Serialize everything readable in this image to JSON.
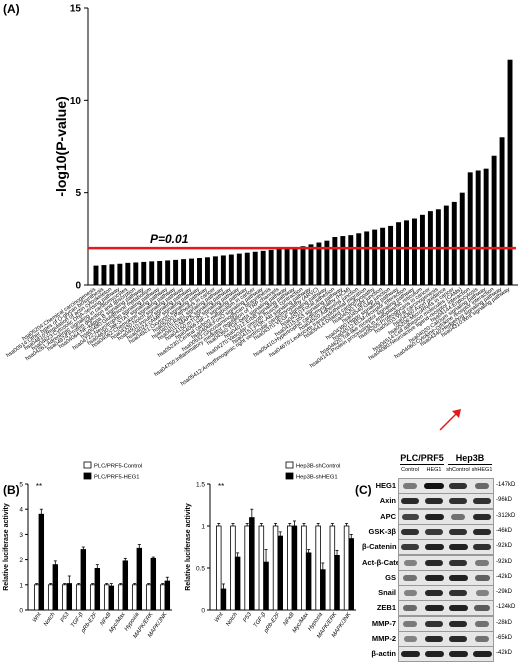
{
  "panels": {
    "a": "(A)",
    "b": "(B)",
    "c": "(C)"
  },
  "chart_data": [
    {
      "panel": "(A)",
      "type": "bar",
      "ylabel": "-log10(P-value)",
      "ylim": [
        0,
        15
      ],
      "yticks": [
        0,
        5,
        10,
        15
      ],
      "threshold": {
        "value": 2.0,
        "label": "P=0.01",
        "color": "#e31a1c"
      },
      "arrow_color": "#e31a1c",
      "arrow_target": "hsa04310:Wnt signaling pathway",
      "categories": [
        "hsa05204:Chemical carcinogenesis",
        "hsa00514:Other types of O-glycan biosynthesis",
        "hsa04810:Regulation of actin cytoskeleton",
        "hsa04623:Cytosolic DNA-sensing pathway",
        "hsa04261:Adrenergic signaling in cardiomyocytes",
        "hsa04974:Protein digestion and absorption",
        "hsa04064:NF-kappa B signaling pathway",
        "hsa00480:Glutathione metabolism",
        "hsa04722:Neurotrophin signaling pathway",
        "hsa04630:Jak-STAT signaling pathway",
        "hsa04062:Chemokine signaling pathway",
        "hsa04330:Notch signaling pathway",
        "hsa04910:Insulin signaling pathway",
        "hsa04024:cAMP signaling pathway",
        "hsa04921:Oxytocin signaling pathway",
        "hsa05200:Pathways in cancer",
        "hsa04015:Rap1 signaling pathway",
        "hsa04010:MAPK signaling pathway",
        "hsa04150:mTOR signaling pathway",
        "hsa04066:HIF-1 signaling pathway",
        "hsa05230:Central carbon metabolism in cancer",
        "hsa04068:FoxO signaling pathway",
        "hsa00532:Glycosaminoglycan biosynthesis",
        "hsa04750:Inflammatory mediator regulation of TRP channels",
        "hsa04350:TGF-beta signaling pathway",
        "hsa04012:ErbB signaling pathway",
        "hsa04270:Vascular smooth muscle contraction",
        "hsa04151:PI3K-Akt signaling pathway",
        "hsa05412:Arrhythmogenic right ventricular cardiomyopathy (ARVC)",
        "hsa04370:VEGF signaling pathway",
        "hsa04510:Focal adhesion",
        "hsa04115:p53 signaling pathway",
        "hsa05410:Hypertrophic cardiomyopathy (HCM)",
        "hsa04520:Adherens junction",
        "hsa04670:Leukocyte transendothelial migration",
        "hsa05414:Dilated cardiomyopathy",
        "hsa04530:Tight junction",
        "hsa04540:Gap junction",
        "hsa04390:Hippo signaling pathway",
        "hsa04512:ECM-receptor interaction",
        "hsa04620:Toll-like receptor signaling pathway",
        "hsa04141:Protein processing in endoplasmic reticulum",
        "hsa05205:Proteoglycans in cancer",
        "hsa05203:Viral carcinogenesis",
        "hsa04360:Axon guidance",
        "hsa05206:MicroRNAs in cancer",
        "hsa04514:Cell adhesion molecules (CAMs)",
        "hsa04080:Neuroactive ligand-receptor interaction",
        "hsa04144:Endocytosis",
        "hsa04020:Calcium signaling pathway",
        "hsa04060:Cytokine-cytokine receptor interaction",
        "hsa04340:Hedgehog signaling pathway",
        "hsa04310:Wnt signaling pathway"
      ],
      "values": [
        1.05,
        1.08,
        1.12,
        1.15,
        1.2,
        1.22,
        1.25,
        1.28,
        1.3,
        1.33,
        1.36,
        1.4,
        1.43,
        1.46,
        1.5,
        1.55,
        1.6,
        1.65,
        1.7,
        1.75,
        1.8,
        1.85,
        1.9,
        1.95,
        2.0,
        2.05,
        2.1,
        2.2,
        2.3,
        2.4,
        2.6,
        2.65,
        2.7,
        2.8,
        2.9,
        3.0,
        3.1,
        3.2,
        3.4,
        3.5,
        3.6,
        3.8,
        4.0,
        4.1,
        4.3,
        4.5,
        5.0,
        6.1,
        6.2,
        6.3,
        7.0,
        8.0,
        12.2
      ]
    },
    {
      "panel": "(B) left",
      "type": "bar",
      "ylabel": "Relative luciferase activity",
      "ylim": [
        0,
        5
      ],
      "yticks": [
        0,
        1,
        2,
        3,
        4,
        5
      ],
      "significance": {
        "category": "Wnt",
        "label": "**"
      },
      "categories": [
        "Wnt",
        "Notch",
        "P53",
        "TGF-β",
        "pRb-E2F",
        "NFκB",
        "Myc/Max",
        "Hypoxia",
        "MAPK/ERK",
        "MAPK/JNK"
      ],
      "series": [
        {
          "name": "PLC/PRF5-Control",
          "color": "#ffffff",
          "values": [
            1,
            1,
            1,
            1,
            1,
            1,
            1,
            1,
            1,
            1
          ],
          "errors": [
            0.05,
            0.05,
            0.05,
            0.05,
            0.05,
            0.05,
            0.05,
            0.05,
            0.05,
            0.05
          ]
        },
        {
          "name": "PLC/PRF5-HEG1",
          "color": "#000000",
          "values": [
            3.8,
            1.8,
            1.05,
            2.4,
            1.65,
            0.95,
            1.95,
            2.45,
            2.05,
            1.15
          ],
          "errors": [
            0.2,
            0.15,
            0.3,
            0.1,
            0.15,
            0.1,
            0.1,
            0.15,
            0.05,
            0.15
          ]
        }
      ]
    },
    {
      "panel": "(B) right",
      "type": "bar",
      "ylabel": "Relative luciferase activity",
      "ylim": [
        0,
        1.5
      ],
      "yticks": [
        0.0,
        0.5,
        1.0,
        1.5
      ],
      "significance": {
        "category": "Wnt",
        "label": "**"
      },
      "categories": [
        "Wnt",
        "Notch",
        "P53",
        "TGF-β",
        "pRb-E2F",
        "NFκB",
        "Myc/Max",
        "Hypoxia",
        "MAPK/ERK",
        "MAPK/JNK"
      ],
      "series": [
        {
          "name": "Hep3B-shControl",
          "color": "#ffffff",
          "values": [
            1,
            1,
            1,
            1,
            1,
            1,
            1,
            1,
            1,
            1
          ],
          "errors": [
            0.03,
            0.03,
            0.03,
            0.03,
            0.03,
            0.03,
            0.03,
            0.03,
            0.03,
            0.03
          ]
        },
        {
          "name": "Hep3B-shHEG1",
          "color": "#000000",
          "values": [
            0.25,
            0.63,
            1.1,
            0.57,
            0.88,
            1.0,
            0.68,
            0.48,
            0.65,
            0.85
          ],
          "errors": [
            0.06,
            0.05,
            0.1,
            0.15,
            0.05,
            0.06,
            0.04,
            0.08,
            0.06,
            0.05
          ]
        }
      ]
    }
  ],
  "western_blot": {
    "group_labels": [
      "PLC/PRF5",
      "Hep3B"
    ],
    "lane_labels": [
      "Control",
      "HEG1",
      "shControl",
      "shHEG1"
    ],
    "rows": [
      {
        "protein": "HEG1",
        "size": "-147kD",
        "intensity": [
          0.35,
          1.0,
          0.8,
          0.45
        ]
      },
      {
        "protein": "Axin",
        "size": "-96kD",
        "intensity": [
          0.85,
          0.85,
          0.8,
          0.8
        ]
      },
      {
        "protein": "APC",
        "size": "-312kD",
        "intensity": [
          0.7,
          0.9,
          0.4,
          0.85
        ]
      },
      {
        "protein": "GSK-3β",
        "size": "-46kD",
        "intensity": [
          0.8,
          0.75,
          0.8,
          0.85
        ]
      },
      {
        "protein": "β-Catenin",
        "size": "-92kD",
        "intensity": [
          0.75,
          0.9,
          0.9,
          0.8
        ]
      },
      {
        "protein": "Act-β-Catenin",
        "size": "-92kD",
        "intensity": [
          0.3,
          0.85,
          0.8,
          0.35
        ]
      },
      {
        "protein": "GS",
        "size": "-42kD",
        "intensity": [
          0.4,
          0.9,
          0.9,
          0.5
        ]
      },
      {
        "protein": "Snail",
        "size": "-29kD",
        "intensity": [
          0.3,
          0.85,
          0.8,
          0.3
        ]
      },
      {
        "protein": "ZEB1",
        "size": "-124kD",
        "intensity": [
          0.45,
          0.9,
          0.9,
          0.55
        ]
      },
      {
        "protein": "MMP-7",
        "size": "-28kD",
        "intensity": [
          0.35,
          0.8,
          0.85,
          0.4
        ]
      },
      {
        "protein": "MMP-2",
        "size": "-65kD",
        "intensity": [
          0.3,
          0.85,
          0.85,
          0.4
        ]
      },
      {
        "protein": "β-actin",
        "size": "-42kD",
        "intensity": [
          0.9,
          0.9,
          0.9,
          0.9
        ]
      }
    ]
  }
}
